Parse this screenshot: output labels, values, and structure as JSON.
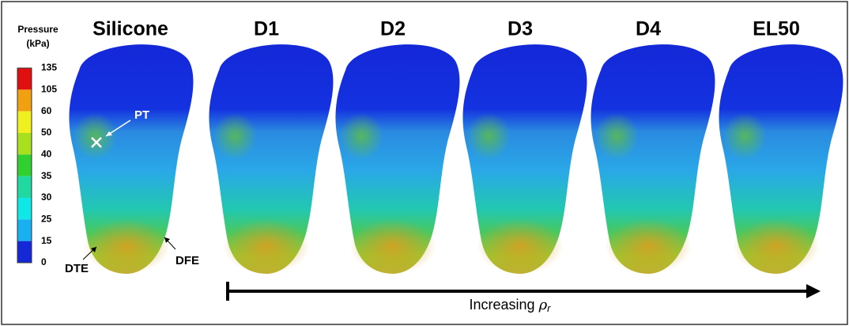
{
  "colorbar": {
    "title": [
      "Pressure",
      "(kPa)"
    ],
    "labels": [
      135,
      105,
      60,
      50,
      40,
      35,
      30,
      25,
      15,
      0
    ]
  },
  "panels": [
    "Silicone",
    "D1",
    "D2",
    "D3",
    "D4",
    "EL50"
  ],
  "annotations": {
    "pt": "PT",
    "dte": "DTE",
    "dfe": "DFE"
  },
  "arrow_label": {
    "text": "Increasing",
    "symbol": "ρ",
    "subscript": "r"
  }
}
